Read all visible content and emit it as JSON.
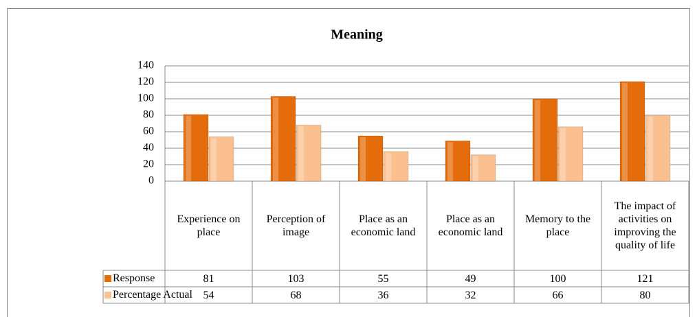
{
  "chart_data": {
    "type": "bar",
    "title": "Meaning",
    "categories": [
      "Experience on place",
      "Perception of image",
      "Place as an economic land",
      "Place as an economic land",
      "Memory to the place",
      "The impact of activities on improving the quality of life"
    ],
    "series": [
      {
        "name": "Response",
        "color": "#e46c0a",
        "values": [
          81,
          103,
          55,
          49,
          100,
          121
        ]
      },
      {
        "name": "Percentage Actual",
        "color": "#fac08f",
        "values": [
          54,
          68,
          36,
          32,
          66,
          80
        ]
      }
    ],
    "ylim": [
      0,
      140
    ],
    "yticks": [
      0,
      20,
      40,
      60,
      80,
      100,
      120,
      140
    ],
    "grid": true,
    "data_table": true
  }
}
